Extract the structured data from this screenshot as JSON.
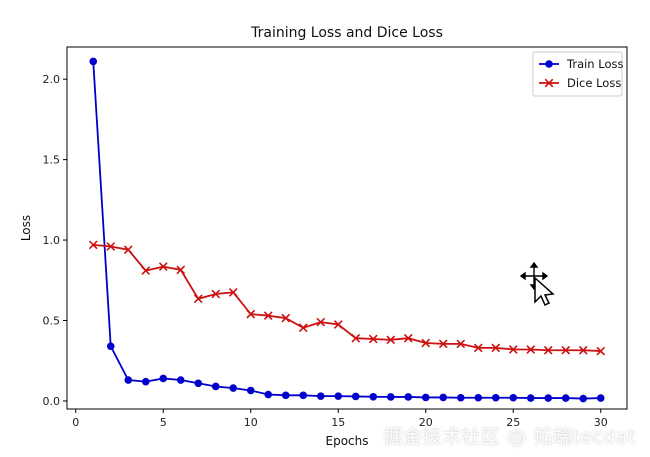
{
  "chart_data": {
    "type": "line",
    "title": "Training Loss and Dice Loss",
    "xlabel": "Epochs",
    "ylabel": "Loss",
    "xlim": [
      -0.5,
      31.5
    ],
    "ylim": [
      -0.05,
      2.2
    ],
    "xticks": [
      0,
      5,
      10,
      15,
      20,
      25,
      30
    ],
    "yticks": [
      0.0,
      0.5,
      1.0,
      1.5,
      2.0
    ],
    "ytick_labels": [
      "0.0",
      "0.5",
      "1.0",
      "1.5",
      "2.0"
    ],
    "grid": false,
    "legend_position": "top-right",
    "x": [
      1,
      2,
      3,
      4,
      5,
      6,
      7,
      8,
      9,
      10,
      11,
      12,
      13,
      14,
      15,
      16,
      17,
      18,
      19,
      20,
      21,
      22,
      23,
      24,
      25,
      26,
      27,
      28,
      29,
      30
    ],
    "series": [
      {
        "name": "Train Loss",
        "color": "#0000cc",
        "marker": "circle",
        "values": [
          2.11,
          0.34,
          0.13,
          0.12,
          0.14,
          0.13,
          0.11,
          0.09,
          0.08,
          0.065,
          0.04,
          0.035,
          0.035,
          0.03,
          0.03,
          0.028,
          0.026,
          0.025,
          0.025,
          0.022,
          0.022,
          0.02,
          0.02,
          0.02,
          0.02,
          0.018,
          0.018,
          0.018,
          0.015,
          0.018
        ]
      },
      {
        "name": "Dice Loss",
        "color": "#cc1111",
        "marker": "x",
        "values": [
          0.97,
          0.96,
          0.94,
          0.81,
          0.835,
          0.815,
          0.635,
          0.665,
          0.675,
          0.54,
          0.53,
          0.515,
          0.455,
          0.49,
          0.475,
          0.39,
          0.385,
          0.38,
          0.39,
          0.36,
          0.355,
          0.355,
          0.33,
          0.33,
          0.32,
          0.32,
          0.315,
          0.315,
          0.315,
          0.31
        ]
      }
    ]
  },
  "watermark": "掘金技术社区 @ 拓端tecdat",
  "cursor_icon": "move-cursor-icon"
}
